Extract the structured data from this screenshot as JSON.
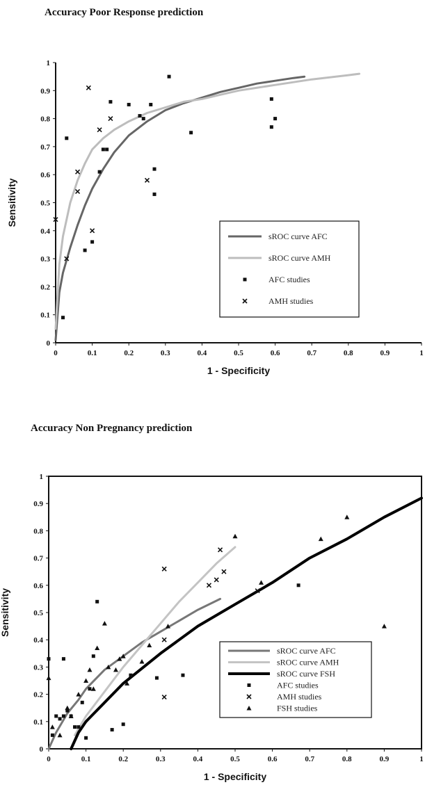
{
  "chart_data": [
    {
      "type": "scatter",
      "title": "Accuracy Poor Response prediction",
      "xlabel": "1 - Specificity",
      "ylabel": "Sensitivity",
      "xlim": [
        0,
        1
      ],
      "ylim": [
        0,
        1
      ],
      "xticks": [
        "0",
        "0.1",
        "0.2",
        "0.3",
        "0.4",
        "0.5",
        "0.6",
        "0.7",
        "0.8",
        "0.9",
        "1"
      ],
      "yticks": [
        "0",
        "0.1",
        "0.2",
        "0.3",
        "0.4",
        "0.5",
        "0.6",
        "0.7",
        "0.8",
        "0.9",
        "1"
      ],
      "legend_position": "bottom-right",
      "series": [
        {
          "name": "sROC curve AFC",
          "kind": "line",
          "color": "#666666",
          "width": 3,
          "x": [
            0,
            0.01,
            0.02,
            0.04,
            0.06,
            0.08,
            0.1,
            0.13,
            0.16,
            0.2,
            0.25,
            0.3,
            0.35,
            0.4,
            0.45,
            0.5,
            0.55,
            0.6,
            0.65,
            0.68
          ],
          "y": [
            0.01,
            0.18,
            0.25,
            0.34,
            0.42,
            0.49,
            0.55,
            0.62,
            0.68,
            0.74,
            0.79,
            0.83,
            0.855,
            0.875,
            0.895,
            0.91,
            0.925,
            0.935,
            0.945,
            0.95
          ]
        },
        {
          "name": "sROC curve AMH",
          "kind": "line",
          "color": "#bdbdbd",
          "width": 3,
          "x": [
            0,
            0.01,
            0.02,
            0.04,
            0.06,
            0.08,
            0.1,
            0.13,
            0.16,
            0.2,
            0.25,
            0.3,
            0.35,
            0.4,
            0.45,
            0.5,
            0.6,
            0.7,
            0.8,
            0.83
          ],
          "y": [
            0.05,
            0.28,
            0.38,
            0.5,
            0.58,
            0.64,
            0.69,
            0.73,
            0.76,
            0.79,
            0.82,
            0.84,
            0.86,
            0.87,
            0.885,
            0.9,
            0.92,
            0.94,
            0.955,
            0.96
          ]
        },
        {
          "name": "AFC studies",
          "kind": "points",
          "marker": "square",
          "color": "#111111",
          "x": [
            0.02,
            0.03,
            0.08,
            0.1,
            0.12,
            0.13,
            0.14,
            0.15,
            0.2,
            0.23,
            0.24,
            0.26,
            0.27,
            0.27,
            0.31,
            0.37,
            0.59,
            0.59,
            0.6
          ],
          "y": [
            0.09,
            0.73,
            0.33,
            0.36,
            0.61,
            0.69,
            0.69,
            0.86,
            0.85,
            0.81,
            0.8,
            0.85,
            0.62,
            0.53,
            0.95,
            0.75,
            0.87,
            0.77,
            0.8
          ]
        },
        {
          "name": "AMH studies",
          "kind": "points",
          "marker": "x",
          "color": "#111111",
          "x": [
            0,
            0.03,
            0.06,
            0.06,
            0.09,
            0.1,
            0.12,
            0.15,
            0.25
          ],
          "y": [
            0.44,
            0.3,
            0.61,
            0.54,
            0.91,
            0.4,
            0.76,
            0.8,
            0.58
          ]
        }
      ]
    },
    {
      "type": "scatter",
      "title": "Accuracy Non Pregnancy prediction",
      "xlabel": "1 - Specificity",
      "ylabel": "Sensitivity",
      "xlim": [
        0,
        1
      ],
      "ylim": [
        0,
        1
      ],
      "xticks": [
        "0",
        "0.1",
        "0.2",
        "0.3",
        "0.4",
        "0.5",
        "0.6",
        "0.7",
        "0.8",
        "0.9",
        "1"
      ],
      "yticks": [
        "0",
        "0.1",
        "0.2",
        "0.3",
        "0.4",
        "0.5",
        "0.6",
        "0.7",
        "0.8",
        "0.9",
        "1"
      ],
      "legend_position": "bottom-right",
      "series": [
        {
          "name": "sROC curve AFC",
          "kind": "line",
          "color": "#777777",
          "width": 3,
          "x": [
            0,
            0.02,
            0.05,
            0.08,
            0.1,
            0.15,
            0.2,
            0.25,
            0.3,
            0.35,
            0.4,
            0.46
          ],
          "y": [
            0,
            0.06,
            0.13,
            0.18,
            0.22,
            0.29,
            0.34,
            0.39,
            0.43,
            0.47,
            0.51,
            0.55
          ]
        },
        {
          "name": "sROC curve AMH",
          "kind": "line",
          "color": "#c4c4c4",
          "width": 3,
          "x": [
            0.07,
            0.1,
            0.15,
            0.2,
            0.25,
            0.3,
            0.35,
            0.4,
            0.45,
            0.5
          ],
          "y": [
            0.05,
            0.12,
            0.21,
            0.3,
            0.38,
            0.46,
            0.54,
            0.61,
            0.68,
            0.74
          ]
        },
        {
          "name": "sROC curve FSH",
          "kind": "line",
          "color": "#000000",
          "width": 4,
          "x": [
            0.06,
            0.08,
            0.1,
            0.15,
            0.2,
            0.3,
            0.4,
            0.5,
            0.6,
            0.7,
            0.8,
            0.9,
            1.0
          ],
          "y": [
            0,
            0.06,
            0.1,
            0.17,
            0.24,
            0.35,
            0.45,
            0.53,
            0.61,
            0.7,
            0.77,
            0.85,
            0.92
          ]
        },
        {
          "name": "AFC studies",
          "kind": "points",
          "marker": "square",
          "color": "#111111",
          "x": [
            0,
            0.01,
            0.02,
            0.03,
            0.04,
            0.04,
            0.05,
            0.06,
            0.07,
            0.08,
            0.09,
            0.1,
            0.11,
            0.12,
            0.13,
            0.17,
            0.2,
            0.22,
            0.29,
            0.36,
            0.67
          ],
          "y": [
            0.33,
            0.05,
            0.12,
            0.11,
            0.33,
            0.12,
            0.14,
            0.12,
            0.08,
            0.08,
            0.17,
            0.04,
            0.22,
            0.34,
            0.54,
            0.07,
            0.09,
            0.27,
            0.26,
            0.27,
            0.6
          ]
        },
        {
          "name": "AMH studies",
          "kind": "points",
          "marker": "x",
          "color": "#111111",
          "x": [
            0.43,
            0.45,
            0.46,
            0.47,
            0.31,
            0.31,
            0.31,
            0.56
          ],
          "y": [
            0.6,
            0.62,
            0.73,
            0.65,
            0.66,
            0.19,
            0.4,
            0.58
          ]
        },
        {
          "name": "FSH studies",
          "kind": "points",
          "marker": "triangle",
          "color": "#111111",
          "x": [
            0,
            0.01,
            0.03,
            0.05,
            0.06,
            0.08,
            0.1,
            0.11,
            0.12,
            0.13,
            0.15,
            0.16,
            0.18,
            0.19,
            0.2,
            0.21,
            0.25,
            0.27,
            0.32,
            0.5,
            0.57,
            0.73,
            0.8,
            0.9
          ],
          "y": [
            0.26,
            0.08,
            0.05,
            0.15,
            0.12,
            0.2,
            0.25,
            0.29,
            0.22,
            0.37,
            0.46,
            0.3,
            0.29,
            0.33,
            0.34,
            0.24,
            0.32,
            0.38,
            0.45,
            0.78,
            0.61,
            0.77,
            0.85,
            0.45
          ]
        }
      ]
    }
  ]
}
